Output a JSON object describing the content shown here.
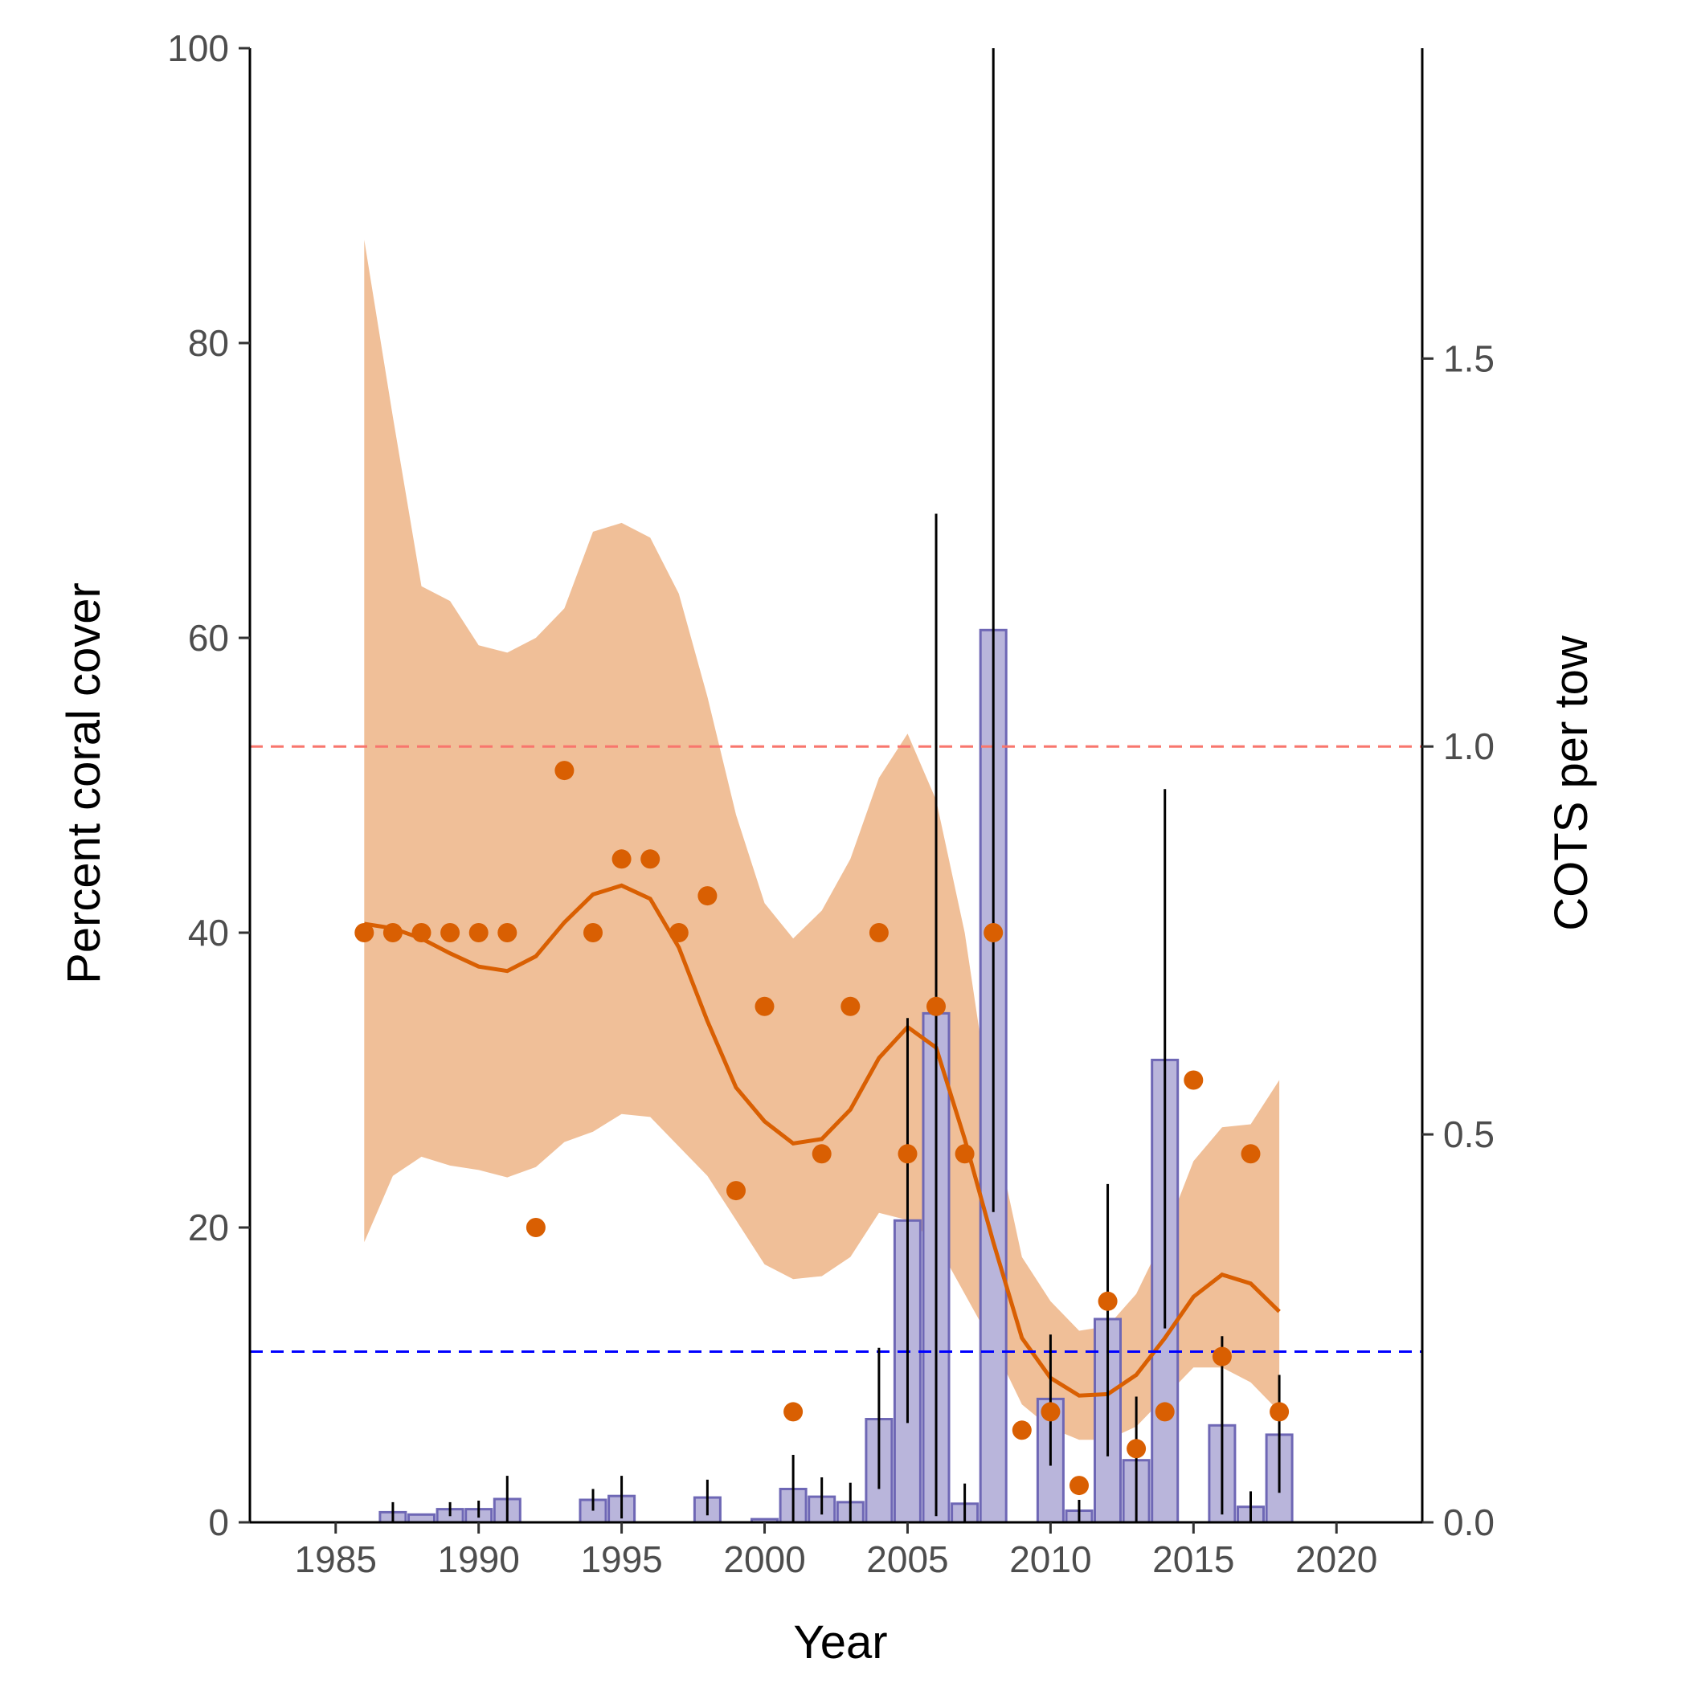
{
  "chart_data": {
    "type": "bar+scatter+line",
    "xlabel": "Year",
    "ylabel_left": "Percent coral cover",
    "ylabel_right": "COTS per tow",
    "xlim": [
      1982,
      2023
    ],
    "ylim_left": [
      0,
      100
    ],
    "ylim_right": [
      0,
      1.9
    ],
    "x_ticks": [
      1985,
      1990,
      1995,
      2000,
      2005,
      2010,
      2015,
      2020
    ],
    "y_left_ticks": [
      0,
      20,
      40,
      60,
      80,
      100
    ],
    "y_right_ticks": [
      "0.0",
      "0.5",
      "1.0",
      "1.5"
    ],
    "y_right_tick_values": [
      0,
      0.5,
      1.0,
      1.5
    ],
    "grid": false,
    "colors": {
      "points": "#D95F02",
      "smooth_line": "#D95F02",
      "ribbon": "#F0BF98",
      "bar_fill": "#B9B5DB",
      "bar_stroke": "#6E67B5",
      "errorbar": "#000000",
      "ref_line_red": "#F8766D",
      "ref_line_blue": "#0000FF"
    },
    "reference_lines": [
      {
        "axis": "right",
        "value": 1.0,
        "color": "#F8766D"
      },
      {
        "axis": "right",
        "value": 0.22,
        "color": "#0000FF"
      }
    ],
    "coral_cover_points": [
      {
        "x": 1986,
        "y": 40
      },
      {
        "x": 1987,
        "y": 40
      },
      {
        "x": 1988,
        "y": 40
      },
      {
        "x": 1989,
        "y": 40
      },
      {
        "x": 1990,
        "y": 40
      },
      {
        "x": 1991,
        "y": 40
      },
      {
        "x": 1992,
        "y": 20
      },
      {
        "x": 1993,
        "y": 51
      },
      {
        "x": 1994,
        "y": 40
      },
      {
        "x": 1995,
        "y": 45
      },
      {
        "x": 1996,
        "y": 45
      },
      {
        "x": 1997,
        "y": 40
      },
      {
        "x": 1998,
        "y": 42.5
      },
      {
        "x": 1999,
        "y": 22.5
      },
      {
        "x": 2000,
        "y": 35
      },
      {
        "x": 2001,
        "y": 7.5
      },
      {
        "x": 2002,
        "y": 25
      },
      {
        "x": 2003,
        "y": 35
      },
      {
        "x": 2004,
        "y": 40
      },
      {
        "x": 2005,
        "y": 25
      },
      {
        "x": 2006,
        "y": 35
      },
      {
        "x": 2007,
        "y": 25
      },
      {
        "x": 2008,
        "y": 40
      },
      {
        "x": 2009,
        "y": 6.25
      },
      {
        "x": 2010,
        "y": 7.5
      },
      {
        "x": 2011,
        "y": 2.5
      },
      {
        "x": 2012,
        "y": 15
      },
      {
        "x": 2013,
        "y": 5
      },
      {
        "x": 2014,
        "y": 7.5
      },
      {
        "x": 2015,
        "y": 30
      },
      {
        "x": 2016,
        "y": 11.25
      },
      {
        "x": 2017,
        "y": 25
      },
      {
        "x": 2018,
        "y": 7.5
      }
    ],
    "smooth_fit": [
      {
        "x": 1986,
        "y": 40.6,
        "lo": 19,
        "hi": 87
      },
      {
        "x": 1987,
        "y": 40.3,
        "lo": 23.5,
        "hi": 75
      },
      {
        "x": 1988,
        "y": 39.6,
        "lo": 24.8,
        "hi": 63.5
      },
      {
        "x": 1989,
        "y": 38.6,
        "lo": 24.2,
        "hi": 62.5
      },
      {
        "x": 1990,
        "y": 37.7,
        "lo": 23.9,
        "hi": 59.5
      },
      {
        "x": 1991,
        "y": 37.4,
        "lo": 23.4,
        "hi": 59
      },
      {
        "x": 1992,
        "y": 38.4,
        "lo": 24.1,
        "hi": 60
      },
      {
        "x": 1993,
        "y": 40.7,
        "lo": 25.8,
        "hi": 62
      },
      {
        "x": 1994,
        "y": 42.6,
        "lo": 26.5,
        "hi": 67.2
      },
      {
        "x": 1995,
        "y": 43.2,
        "lo": 27.7,
        "hi": 67.8
      },
      {
        "x": 1996,
        "y": 42.3,
        "lo": 27.5,
        "hi": 66.8
      },
      {
        "x": 1997,
        "y": 39,
        "lo": 25.5,
        "hi": 63
      },
      {
        "x": 1998,
        "y": 34,
        "lo": 23.5,
        "hi": 56
      },
      {
        "x": 1999,
        "y": 29.5,
        "lo": 20.5,
        "hi": 48
      },
      {
        "x": 2000,
        "y": 27.2,
        "lo": 17.5,
        "hi": 42
      },
      {
        "x": 2001,
        "y": 25.7,
        "lo": 16.5,
        "hi": 39.6
      },
      {
        "x": 2002,
        "y": 26,
        "lo": 16.7,
        "hi": 41.5
      },
      {
        "x": 2003,
        "y": 28,
        "lo": 18,
        "hi": 45
      },
      {
        "x": 2004,
        "y": 31.5,
        "lo": 21,
        "hi": 50.5
      },
      {
        "x": 2005,
        "y": 33.6,
        "lo": 20.5,
        "hi": 53.5
      },
      {
        "x": 2006,
        "y": 32.2,
        "lo": 19,
        "hi": 49
      },
      {
        "x": 2007,
        "y": 26,
        "lo": 15.5,
        "hi": 40
      },
      {
        "x": 2008,
        "y": 19,
        "lo": 12,
        "hi": 27
      },
      {
        "x": 2009,
        "y": 12.5,
        "lo": 8,
        "hi": 18
      },
      {
        "x": 2010,
        "y": 9.8,
        "lo": 6.4,
        "hi": 15
      },
      {
        "x": 2011,
        "y": 8.6,
        "lo": 5.6,
        "hi": 13
      },
      {
        "x": 2012,
        "y": 8.7,
        "lo": 5.6,
        "hi": 13.3
      },
      {
        "x": 2013,
        "y": 10,
        "lo": 6.5,
        "hi": 15.5
      },
      {
        "x": 2014,
        "y": 12.5,
        "lo": 8.5,
        "hi": 19.5
      },
      {
        "x": 2015,
        "y": 15.3,
        "lo": 10.5,
        "hi": 24.5
      },
      {
        "x": 2016,
        "y": 16.8,
        "lo": 10.5,
        "hi": 26.8
      },
      {
        "x": 2017,
        "y": 16.2,
        "lo": 9.5,
        "hi": 27
      },
      {
        "x": 2018,
        "y": 14.3,
        "lo": 7.5,
        "hi": 30
      }
    ],
    "cots_bars": [
      {
        "x": 1987,
        "value": 0.013,
        "lo": 0.0,
        "hi": 0.026
      },
      {
        "x": 1988,
        "value": 0.01,
        "lo": null,
        "hi": null
      },
      {
        "x": 1989,
        "value": 0.017,
        "lo": 0.008,
        "hi": 0.026
      },
      {
        "x": 1990,
        "value": 0.017,
        "lo": 0.006,
        "hi": 0.028
      },
      {
        "x": 1991,
        "value": 0.03,
        "lo": 0.0,
        "hi": 0.06
      },
      {
        "x": 1994,
        "value": 0.029,
        "lo": 0.015,
        "hi": 0.043
      },
      {
        "x": 1995,
        "value": 0.034,
        "lo": 0.005,
        "hi": 0.06
      },
      {
        "x": 1998,
        "value": 0.032,
        "lo": 0.009,
        "hi": 0.055
      },
      {
        "x": 2000,
        "value": 0.004,
        "lo": null,
        "hi": null
      },
      {
        "x": 2001,
        "value": 0.043,
        "lo": 0.0,
        "hi": 0.087
      },
      {
        "x": 2002,
        "value": 0.033,
        "lo": 0.01,
        "hi": 0.058
      },
      {
        "x": 2003,
        "value": 0.026,
        "lo": 0.0,
        "hi": 0.051
      },
      {
        "x": 2004,
        "value": 0.133,
        "lo": 0.043,
        "hi": 0.225
      },
      {
        "x": 2005,
        "value": 0.389,
        "lo": 0.128,
        "hi": 0.65
      },
      {
        "x": 2006,
        "value": 0.656,
        "lo": 0.008,
        "hi": 1.3
      },
      {
        "x": 2007,
        "value": 0.024,
        "lo": 0.0,
        "hi": 0.05
      },
      {
        "x": 2008,
        "value": 1.15,
        "lo": 0.4,
        "hi": 1.9
      },
      {
        "x": 2010,
        "value": 0.159,
        "lo": 0.073,
        "hi": 0.242
      },
      {
        "x": 2011,
        "value": 0.015,
        "lo": 0.0,
        "hi": 0.029
      },
      {
        "x": 2012,
        "value": 0.262,
        "lo": 0.085,
        "hi": 0.436
      },
      {
        "x": 2013,
        "value": 0.08,
        "lo": 0.0,
        "hi": 0.162
      },
      {
        "x": 2014,
        "value": 0.596,
        "lo": 0.25,
        "hi": 0.945
      },
      {
        "x": 2016,
        "value": 0.125,
        "lo": 0.01,
        "hi": 0.24
      },
      {
        "x": 2017,
        "value": 0.02,
        "lo": 0.0,
        "hi": 0.04
      },
      {
        "x": 2018,
        "value": 0.113,
        "lo": 0.038,
        "hi": 0.19
      }
    ]
  }
}
